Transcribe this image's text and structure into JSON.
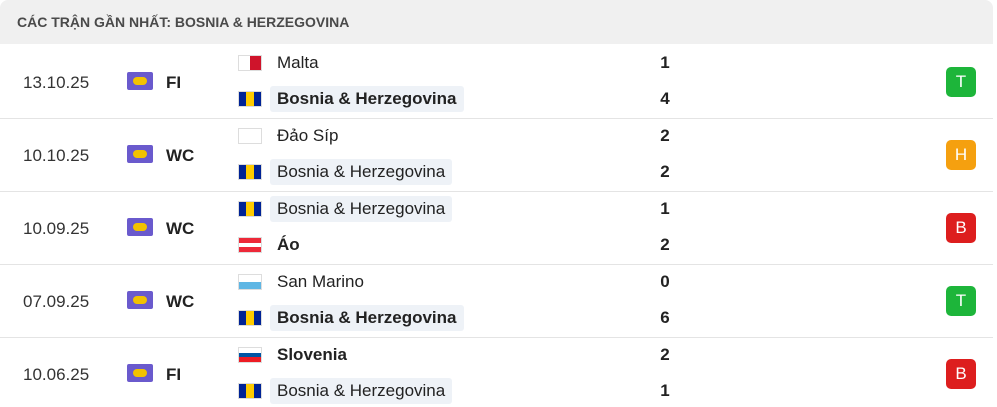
{
  "header": {
    "title": "CÁC TRẬN GẦN NHẤT: BOSNIA & HERZEGOVINA"
  },
  "matches": [
    {
      "date": "13.10.25",
      "competition": "FI",
      "teams": [
        {
          "name": "Malta",
          "score": 1,
          "bold": false,
          "highlight": false,
          "flag": {
            "dir": "v",
            "colors": [
              "#ffffff",
              "#cf142b"
            ]
          }
        },
        {
          "name": "Bosnia & Herzegovina",
          "score": 4,
          "bold": true,
          "highlight": true,
          "flag": {
            "dir": "v",
            "colors": [
              "#002395",
              "#fecb00",
              "#002395"
            ]
          }
        }
      ],
      "result": {
        "label": "T",
        "color": "#1db53a"
      }
    },
    {
      "date": "10.10.25",
      "competition": "WC",
      "teams": [
        {
          "name": "Đảo Síp",
          "score": 2,
          "bold": false,
          "highlight": false,
          "flag": {
            "dir": "h",
            "colors": [
              "#ffffff",
              "#ffffff"
            ]
          }
        },
        {
          "name": "Bosnia & Herzegovina",
          "score": 2,
          "bold": false,
          "highlight": true,
          "flag": {
            "dir": "v",
            "colors": [
              "#002395",
              "#fecb00",
              "#002395"
            ]
          }
        }
      ],
      "result": {
        "label": "H",
        "color": "#f5a00f"
      }
    },
    {
      "date": "10.09.25",
      "competition": "WC",
      "teams": [
        {
          "name": "Bosnia & Herzegovina",
          "score": 1,
          "bold": false,
          "highlight": true,
          "flag": {
            "dir": "v",
            "colors": [
              "#002395",
              "#fecb00",
              "#002395"
            ]
          }
        },
        {
          "name": "Áo",
          "score": 2,
          "bold": true,
          "highlight": false,
          "flag": {
            "dir": "h",
            "colors": [
              "#ed2939",
              "#ffffff",
              "#ed2939"
            ]
          }
        }
      ],
      "result": {
        "label": "B",
        "color": "#dd1e1e"
      }
    },
    {
      "date": "07.09.25",
      "competition": "WC",
      "teams": [
        {
          "name": "San Marino",
          "score": 0,
          "bold": false,
          "highlight": false,
          "flag": {
            "dir": "h",
            "colors": [
              "#ffffff",
              "#5eb6e4"
            ]
          }
        },
        {
          "name": "Bosnia & Herzegovina",
          "score": 6,
          "bold": true,
          "highlight": true,
          "flag": {
            "dir": "v",
            "colors": [
              "#002395",
              "#fecb00",
              "#002395"
            ]
          }
        }
      ],
      "result": {
        "label": "T",
        "color": "#1db53a"
      }
    },
    {
      "date": "10.06.25",
      "competition": "FI",
      "teams": [
        {
          "name": "Slovenia",
          "score": 2,
          "bold": true,
          "highlight": false,
          "flag": {
            "dir": "h",
            "colors": [
              "#ffffff",
              "#0055a4",
              "#ed1c24"
            ]
          }
        },
        {
          "name": "Bosnia & Herzegovina",
          "score": 1,
          "bold": false,
          "highlight": true,
          "flag": {
            "dir": "v",
            "colors": [
              "#002395",
              "#fecb00",
              "#002395"
            ]
          }
        }
      ],
      "result": {
        "label": "B",
        "color": "#dd1e1e"
      }
    }
  ]
}
